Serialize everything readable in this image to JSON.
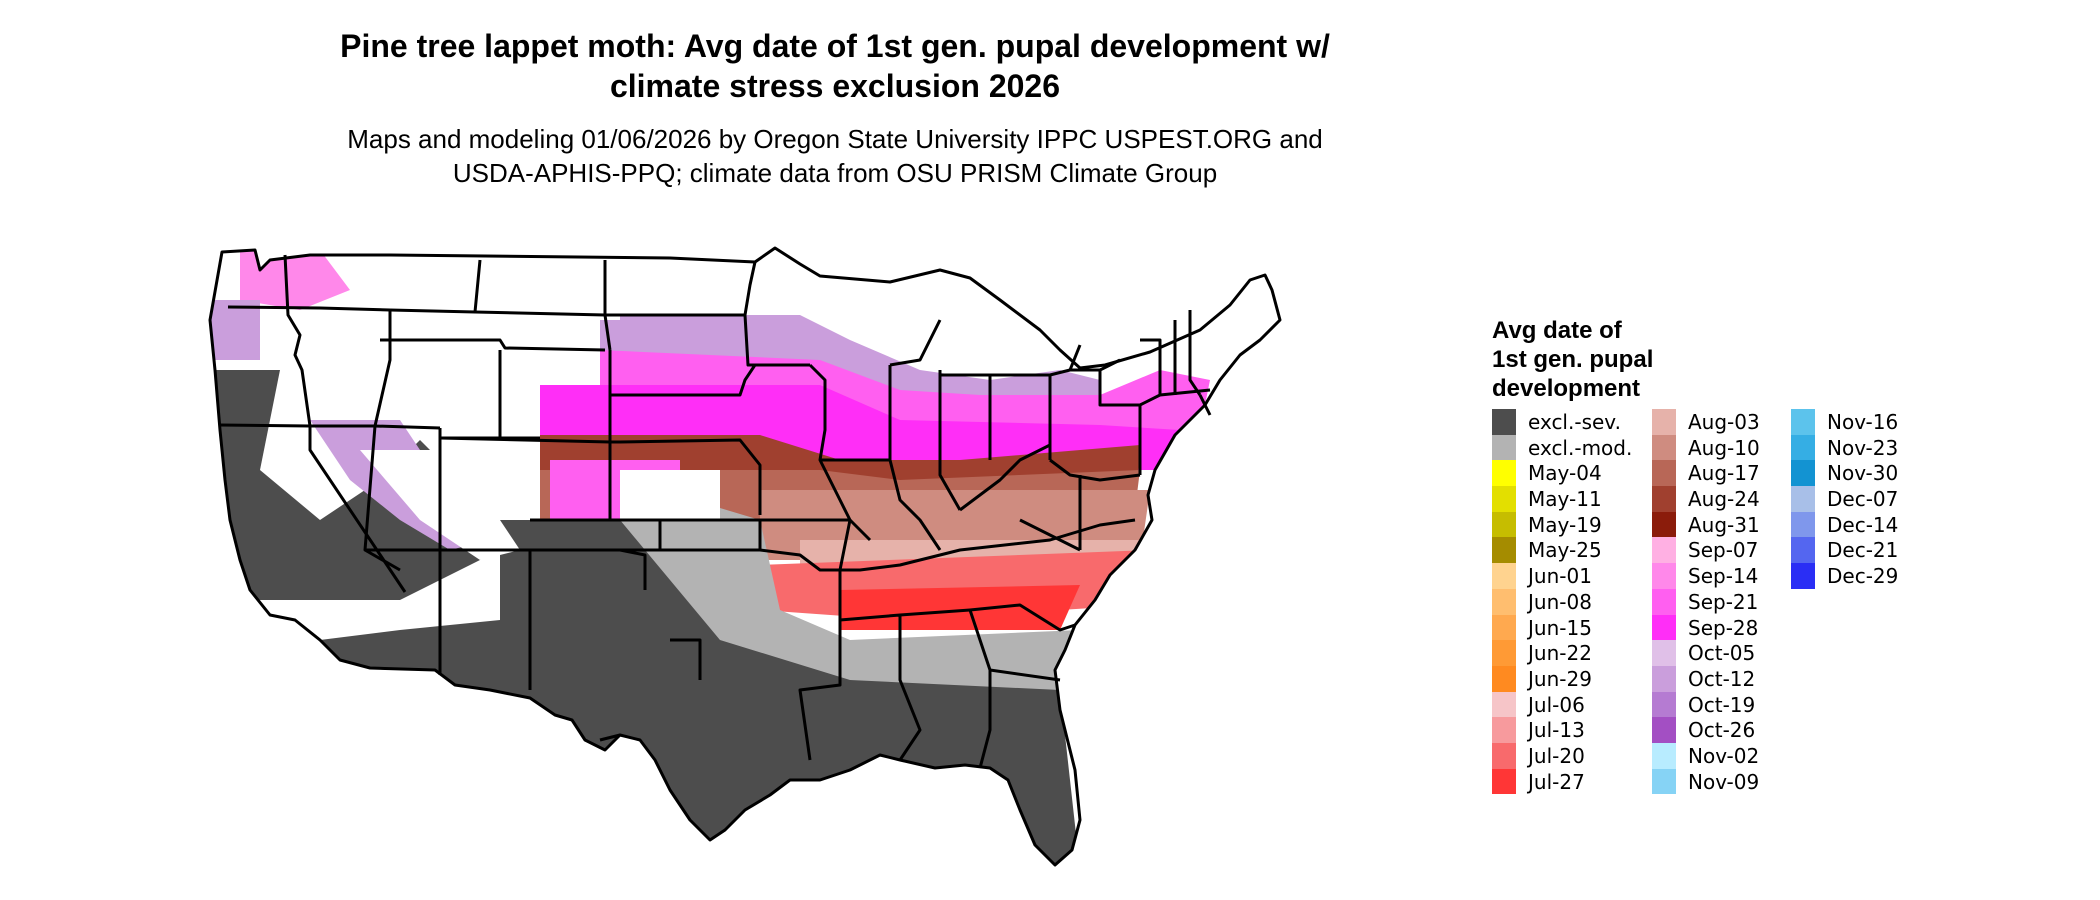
{
  "title_line1": "Pine tree lappet moth: Avg date of 1st gen. pupal development w/",
  "title_line2": "climate stress exclusion 2026",
  "subtitle_line1": "Maps and modeling 01/06/2026 by Oregon State University IPPC USPEST.ORG and",
  "subtitle_line2": "USDA-APHIS-PPQ; climate data from OSU PRISM Climate Group",
  "legend": {
    "title_lines": [
      "Avg date of",
      "1st gen. pupal",
      "development"
    ],
    "columns": [
      [
        {
          "label": "excl.-sev.",
          "color": "#4d4d4d"
        },
        {
          "label": "excl.-mod.",
          "color": "#b3b3b3"
        },
        {
          "label": "May-04",
          "color": "#ffff00"
        },
        {
          "label": "May-11",
          "color": "#e3df00"
        },
        {
          "label": "May-19",
          "color": "#c6bd00"
        },
        {
          "label": "May-25",
          "color": "#a58c00"
        },
        {
          "label": "Jun-01",
          "color": "#ffd38f"
        },
        {
          "label": "Jun-08",
          "color": "#ffbe6f"
        },
        {
          "label": "Jun-15",
          "color": "#ffa94f"
        },
        {
          "label": "Jun-22",
          "color": "#ff9a35"
        },
        {
          "label": "Jun-29",
          "color": "#ff8a20"
        },
        {
          "label": "Jul-06",
          "color": "#f6c5c8"
        },
        {
          "label": "Jul-13",
          "color": "#f79a9d"
        },
        {
          "label": "Jul-20",
          "color": "#f86a6c"
        },
        {
          "label": "Jul-27",
          "color": "#ff3636"
        }
      ],
      [
        {
          "label": "Aug-03",
          "color": "#e6b2aa"
        },
        {
          "label": "Aug-10",
          "color": "#cf8c80"
        },
        {
          "label": "Aug-17",
          "color": "#b86757"
        },
        {
          "label": "Aug-24",
          "color": "#a0402f"
        },
        {
          "label": "Aug-31",
          "color": "#8b1c0b"
        },
        {
          "label": "Sep-07",
          "color": "#ffb0e3"
        },
        {
          "label": "Sep-14",
          "color": "#ff88ea"
        },
        {
          "label": "Sep-21",
          "color": "#ff5ff0"
        },
        {
          "label": "Sep-28",
          "color": "#ff2ef7"
        },
        {
          "label": "Oct-05",
          "color": "#e0c0e8"
        },
        {
          "label": "Oct-12",
          "color": "#ca9edc"
        },
        {
          "label": "Oct-19",
          "color": "#b57bd2"
        },
        {
          "label": "Oct-26",
          "color": "#a34fc3"
        },
        {
          "label": "Nov-02",
          "color": "#b8ecff"
        },
        {
          "label": "Nov-09",
          "color": "#86d3f5"
        }
      ],
      [
        {
          "label": "Nov-16",
          "color": "#5cc3ec"
        },
        {
          "label": "Nov-23",
          "color": "#35aee4"
        },
        {
          "label": "Nov-30",
          "color": "#1393d2"
        },
        {
          "label": "Dec-07",
          "color": "#a8bfe8"
        },
        {
          "label": "Dec-14",
          "color": "#7f97ec"
        },
        {
          "label": "Dec-21",
          "color": "#5466f0"
        },
        {
          "label": "Dec-29",
          "color": "#2a2ef5"
        }
      ]
    ]
  }
}
